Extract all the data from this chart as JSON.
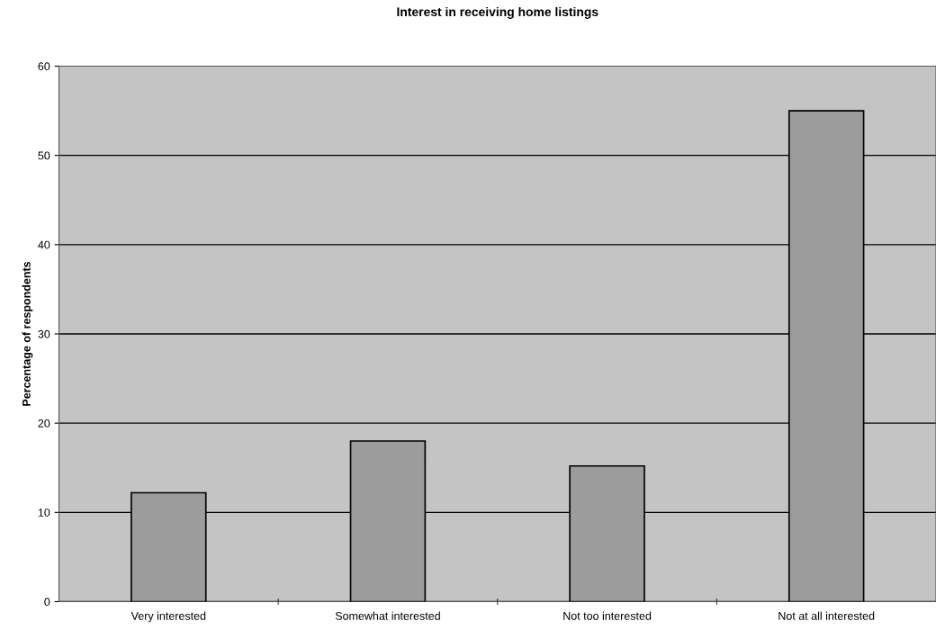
{
  "chart_data": {
    "type": "bar",
    "title": "Interest in receiving home listings",
    "ylabel": "Percentage of respondents",
    "categories": [
      "Very interested",
      "Somewhat interested",
      "Not too interested",
      "Not at all interested"
    ],
    "values": [
      12.2,
      18.0,
      15.2,
      55.0
    ],
    "color": "#9c9c9c",
    "ylim": [
      0,
      60
    ],
    "yticks": [
      0,
      10,
      20,
      30,
      40,
      50,
      60
    ],
    "grid": "y"
  }
}
